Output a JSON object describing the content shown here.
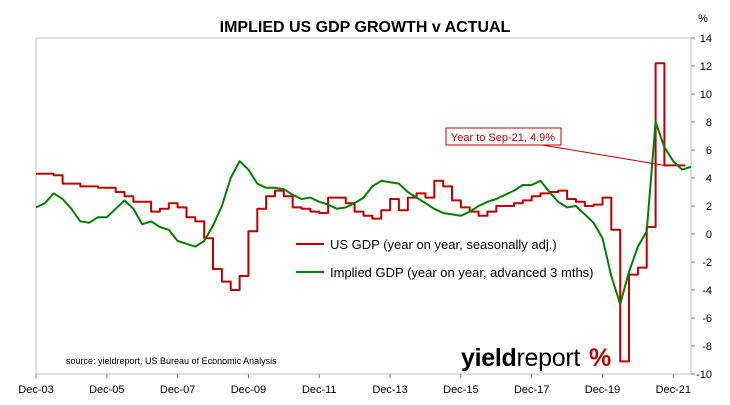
{
  "chart_data": {
    "type": "line",
    "title": "IMPLIED US GDP GROWTH v ACTUAL",
    "y_unit": "%",
    "ylim": [
      -10,
      14
    ],
    "y_ticks": [
      -10,
      -8,
      -6,
      -4,
      -2,
      0,
      2,
      4,
      6,
      8,
      10,
      12,
      14
    ],
    "x_range": [
      "2003-12",
      "2022-06"
    ],
    "x_tick_labels": [
      "Dec-03",
      "Dec-05",
      "Dec-07",
      "Dec-09",
      "Dec-11",
      "Dec-13",
      "Dec-15",
      "Dec-17",
      "Dec-19",
      "Dec-21"
    ],
    "x_tick_positions": [
      "2003-12",
      "2005-12",
      "2007-12",
      "2009-12",
      "2011-12",
      "2013-12",
      "2015-12",
      "2017-12",
      "2019-12",
      "2021-12"
    ],
    "grid": false,
    "legend_position": "center",
    "series": [
      {
        "name": "US GDP (year on year, seasonally adj.)",
        "color": "#c00000",
        "step": true,
        "points": [
          [
            "2003-12",
            4.3
          ],
          [
            "2004-06",
            4.2
          ],
          [
            "2004-09",
            3.6
          ],
          [
            "2005-03",
            3.4
          ],
          [
            "2005-09",
            3.3
          ],
          [
            "2006-03",
            3.0
          ],
          [
            "2006-06",
            2.7
          ],
          [
            "2006-09",
            2.3
          ],
          [
            "2007-03",
            1.6
          ],
          [
            "2007-06",
            1.8
          ],
          [
            "2007-09",
            2.2
          ],
          [
            "2007-12",
            1.9
          ],
          [
            "2008-03",
            1.2
          ],
          [
            "2008-06",
            0.9
          ],
          [
            "2008-09",
            -0.3
          ],
          [
            "2008-12",
            -2.5
          ],
          [
            "2009-03",
            -3.4
          ],
          [
            "2009-06",
            -4.0
          ],
          [
            "2009-09",
            -3.0
          ],
          [
            "2009-12",
            0.2
          ],
          [
            "2010-03",
            1.8
          ],
          [
            "2010-06",
            2.7
          ],
          [
            "2010-09",
            3.1
          ],
          [
            "2010-12",
            2.7
          ],
          [
            "2011-03",
            1.9
          ],
          [
            "2011-06",
            1.8
          ],
          [
            "2011-09",
            1.6
          ],
          [
            "2011-12",
            1.5
          ],
          [
            "2012-03",
            2.6
          ],
          [
            "2012-06",
            2.6
          ],
          [
            "2012-09",
            2.2
          ],
          [
            "2012-12",
            1.6
          ],
          [
            "2013-03",
            1.3
          ],
          [
            "2013-06",
            1.1
          ],
          [
            "2013-09",
            1.7
          ],
          [
            "2013-12",
            2.5
          ],
          [
            "2014-03",
            1.7
          ],
          [
            "2014-06",
            2.6
          ],
          [
            "2014-09",
            2.9
          ],
          [
            "2014-12",
            2.6
          ],
          [
            "2015-03",
            3.8
          ],
          [
            "2015-06",
            3.4
          ],
          [
            "2015-09",
            2.4
          ],
          [
            "2015-12",
            1.9
          ],
          [
            "2016-03",
            1.6
          ],
          [
            "2016-06",
            1.3
          ],
          [
            "2016-09",
            1.6
          ],
          [
            "2016-12",
            2.0
          ],
          [
            "2017-03",
            2.0
          ],
          [
            "2017-06",
            2.2
          ],
          [
            "2017-09",
            2.4
          ],
          [
            "2017-12",
            2.7
          ],
          [
            "2018-03",
            2.9
          ],
          [
            "2018-06",
            3.0
          ],
          [
            "2018-09",
            3.1
          ],
          [
            "2018-12",
            2.5
          ],
          [
            "2019-03",
            2.3
          ],
          [
            "2019-06",
            2.0
          ],
          [
            "2019-09",
            2.1
          ],
          [
            "2019-12",
            2.6
          ],
          [
            "2020-03",
            0.3
          ],
          [
            "2020-06",
            -9.1
          ],
          [
            "2020-09",
            -2.9
          ],
          [
            "2020-12",
            -2.4
          ],
          [
            "2021-03",
            0.5
          ],
          [
            "2021-06",
            12.2
          ],
          [
            "2021-09",
            4.9
          ],
          [
            "2021-12",
            4.9
          ]
        ]
      },
      {
        "name": "Implied GDP (year on year, advanced 3 mths)",
        "color": "#008000",
        "step": false,
        "points": [
          [
            "2003-12",
            1.9
          ],
          [
            "2004-03",
            2.2
          ],
          [
            "2004-06",
            2.9
          ],
          [
            "2004-09",
            2.5
          ],
          [
            "2004-12",
            1.8
          ],
          [
            "2005-03",
            0.9
          ],
          [
            "2005-06",
            0.8
          ],
          [
            "2005-09",
            1.2
          ],
          [
            "2005-12",
            1.2
          ],
          [
            "2006-03",
            1.8
          ],
          [
            "2006-06",
            2.4
          ],
          [
            "2006-09",
            1.8
          ],
          [
            "2006-12",
            0.7
          ],
          [
            "2007-03",
            0.9
          ],
          [
            "2007-06",
            0.5
          ],
          [
            "2007-09",
            0.3
          ],
          [
            "2007-12",
            -0.5
          ],
          [
            "2008-03",
            -0.7
          ],
          [
            "2008-06",
            -0.9
          ],
          [
            "2008-09",
            -0.5
          ],
          [
            "2008-12",
            0.6
          ],
          [
            "2009-03",
            2.0
          ],
          [
            "2009-06",
            4.0
          ],
          [
            "2009-09",
            5.2
          ],
          [
            "2009-12",
            4.6
          ],
          [
            "2010-03",
            3.6
          ],
          [
            "2010-06",
            3.3
          ],
          [
            "2010-09",
            3.3
          ],
          [
            "2010-12",
            3.2
          ],
          [
            "2011-03",
            2.8
          ],
          [
            "2011-06",
            2.5
          ],
          [
            "2011-09",
            2.6
          ],
          [
            "2011-12",
            2.3
          ],
          [
            "2012-03",
            2.1
          ],
          [
            "2012-06",
            1.8
          ],
          [
            "2012-09",
            1.9
          ],
          [
            "2012-12",
            2.2
          ],
          [
            "2013-03",
            2.6
          ],
          [
            "2013-06",
            3.4
          ],
          [
            "2013-09",
            3.8
          ],
          [
            "2013-12",
            3.7
          ],
          [
            "2014-03",
            3.6
          ],
          [
            "2014-06",
            3.0
          ],
          [
            "2014-09",
            2.6
          ],
          [
            "2014-12",
            2.2
          ],
          [
            "2015-03",
            1.8
          ],
          [
            "2015-06",
            1.5
          ],
          [
            "2015-09",
            1.4
          ],
          [
            "2015-12",
            1.3
          ],
          [
            "2016-03",
            1.6
          ],
          [
            "2016-06",
            2.0
          ],
          [
            "2016-09",
            2.3
          ],
          [
            "2016-12",
            2.5
          ],
          [
            "2017-03",
            2.8
          ],
          [
            "2017-06",
            3.1
          ],
          [
            "2017-09",
            3.5
          ],
          [
            "2017-12",
            3.5
          ],
          [
            "2018-03",
            3.8
          ],
          [
            "2018-06",
            3.0
          ],
          [
            "2018-09",
            2.3
          ],
          [
            "2018-12",
            1.9
          ],
          [
            "2019-03",
            2.0
          ],
          [
            "2019-06",
            1.4
          ],
          [
            "2019-09",
            0.8
          ],
          [
            "2019-12",
            -0.3
          ],
          [
            "2020-03",
            -3.0
          ],
          [
            "2020-06",
            -5.0
          ],
          [
            "2020-09",
            -2.7
          ],
          [
            "2020-12",
            -0.9
          ],
          [
            "2021-03",
            0.2
          ],
          [
            "2021-06",
            8.0
          ],
          [
            "2021-09",
            6.2
          ],
          [
            "2021-12",
            5.2
          ],
          [
            "2022-03",
            4.6
          ],
          [
            "2022-06",
            4.8
          ]
        ]
      }
    ],
    "annotation": {
      "text": "Year to Sep-21, 4.9%",
      "points_to": [
        "2021-09",
        4.9
      ]
    },
    "source": "source: yieldreport, US Bureau of Economic Analysis"
  },
  "logo": {
    "text_bold": "yield",
    "text_light": "report",
    "symbol": "%"
  }
}
